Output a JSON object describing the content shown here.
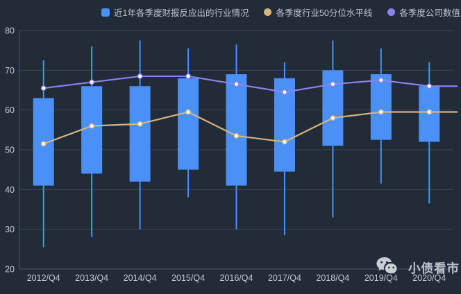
{
  "legend": {
    "items": [
      {
        "label": "近1年各季度财报反应出的行业情况",
        "color": "#4a90f7",
        "shape": "square"
      },
      {
        "label": "各季度行业50分位水平线",
        "color": "#d8b47e",
        "shape": "circle"
      },
      {
        "label": "各季度公司数值",
        "color": "#8b82ee",
        "shape": "circle"
      }
    ]
  },
  "watermark": {
    "text": "小债看市",
    "icon": "wechat-icon"
  },
  "chart_data": {
    "type": "candlestick+line",
    "title": "",
    "categories": [
      "2012/Q4",
      "2013/Q4",
      "2014/Q4",
      "2015/Q4",
      "2016/Q4",
      "2017/Q4",
      "2018/Q4",
      "2019/Q4",
      "2020/Q4"
    ],
    "series": [
      {
        "name": "近1年各季度财报反应出的行业情况",
        "type": "candlestick",
        "color": "#4a90f7",
        "boxes": [
          {
            "low": 25.5,
            "q1": 41,
            "q3": 63,
            "high": 72.5
          },
          {
            "low": 28,
            "q1": 44,
            "q3": 66,
            "high": 76
          },
          {
            "low": 30,
            "q1": 42,
            "q3": 66,
            "high": 77.5
          },
          {
            "low": 38,
            "q1": 45,
            "q3": 68,
            "high": 75.5
          },
          {
            "low": 30,
            "q1": 41,
            "q3": 69,
            "high": 76.5
          },
          {
            "low": 28.5,
            "q1": 44.5,
            "q3": 68,
            "high": 72
          },
          {
            "low": 33,
            "q1": 51,
            "q3": 70,
            "high": 77.5
          },
          {
            "low": 41.5,
            "q1": 52.5,
            "q3": 69,
            "high": 75.5
          },
          {
            "low": 36.5,
            "q1": 52,
            "q3": 66,
            "high": 72
          }
        ]
      },
      {
        "name": "各季度行业50分位水平线",
        "type": "line",
        "color": "#d8b47e",
        "values": [
          51.5,
          56,
          56.5,
          59.5,
          53.5,
          52,
          58,
          59.5,
          59.5
        ]
      },
      {
        "name": "各季度公司数值",
        "type": "line",
        "color": "#8b82ee",
        "values": [
          65.5,
          67,
          68.5,
          68.5,
          66.5,
          64.5,
          66.5,
          67.5,
          66
        ]
      }
    ],
    "ylim": [
      20,
      80
    ],
    "yticks": [
      20,
      30,
      40,
      50,
      60,
      70,
      80
    ],
    "grid": true,
    "legend_position": "top",
    "colors": {
      "background": "#222b38",
      "gridline": "#39455a",
      "axis_line": "#4d5a73",
      "axis_label": "#c3cad6",
      "bar": "#4a90f7",
      "percentile_line": "#d8b47e",
      "company_line": "#8b82ee"
    }
  }
}
